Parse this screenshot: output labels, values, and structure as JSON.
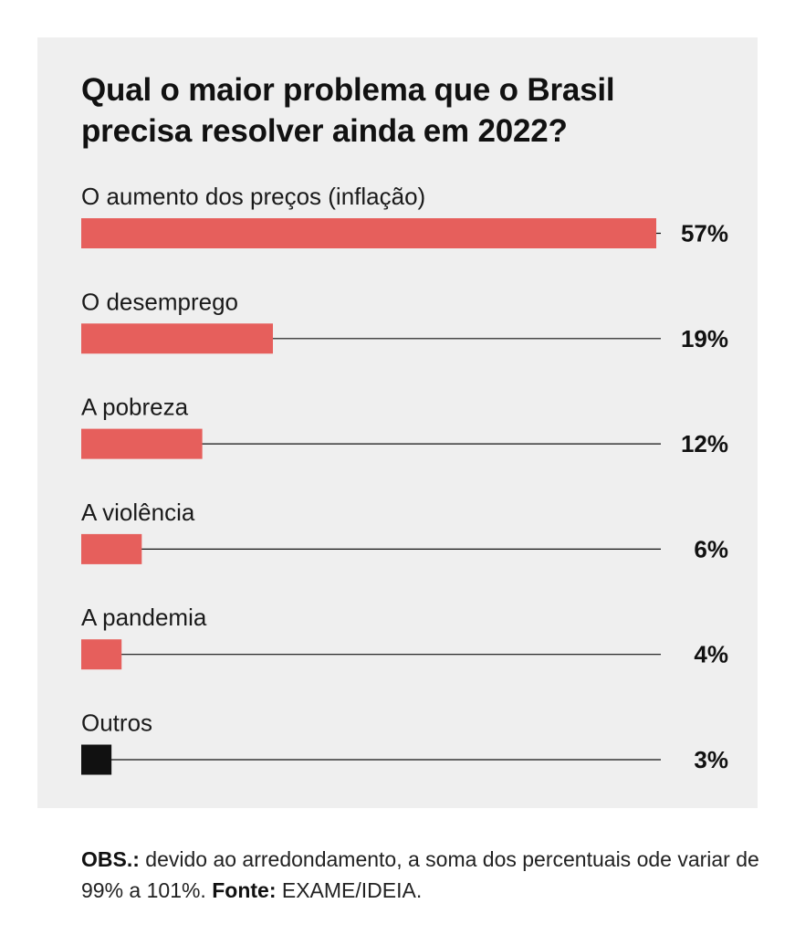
{
  "chart_data": {
    "type": "bar",
    "orientation": "horizontal",
    "title_lines": [
      "Qual o maior problema que o Brasil",
      "precisa resolver ainda em 2022?"
    ],
    "categories": [
      "O aumento dos preços (inflação)",
      "O desemprego",
      "A pobreza",
      "A violência",
      "A pandemia",
      "Outros"
    ],
    "values": [
      57,
      19,
      12,
      6,
      4,
      3
    ],
    "value_labels": [
      "57%",
      "19%",
      "12%",
      "6%",
      "4%",
      "3%"
    ],
    "bar_colors": [
      "#e65f5c",
      "#e65f5c",
      "#e65f5c",
      "#e65f5c",
      "#e65f5c",
      "#111111"
    ],
    "xlim": [
      0,
      57
    ],
    "grid": false,
    "legend": "none"
  },
  "footnote": {
    "obs_label": "OBS.:",
    "obs_text": " devido ao arredondamento, a soma dos percentuais ode variar de 99% a 101%. ",
    "source_label": "Fonte:",
    "source_text": " EXAME/IDEIA."
  },
  "colors": {
    "panel_background": "#efefef",
    "accent_bar": "#e65f5c",
    "other_bar": "#111111",
    "baseline": "#111111"
  }
}
